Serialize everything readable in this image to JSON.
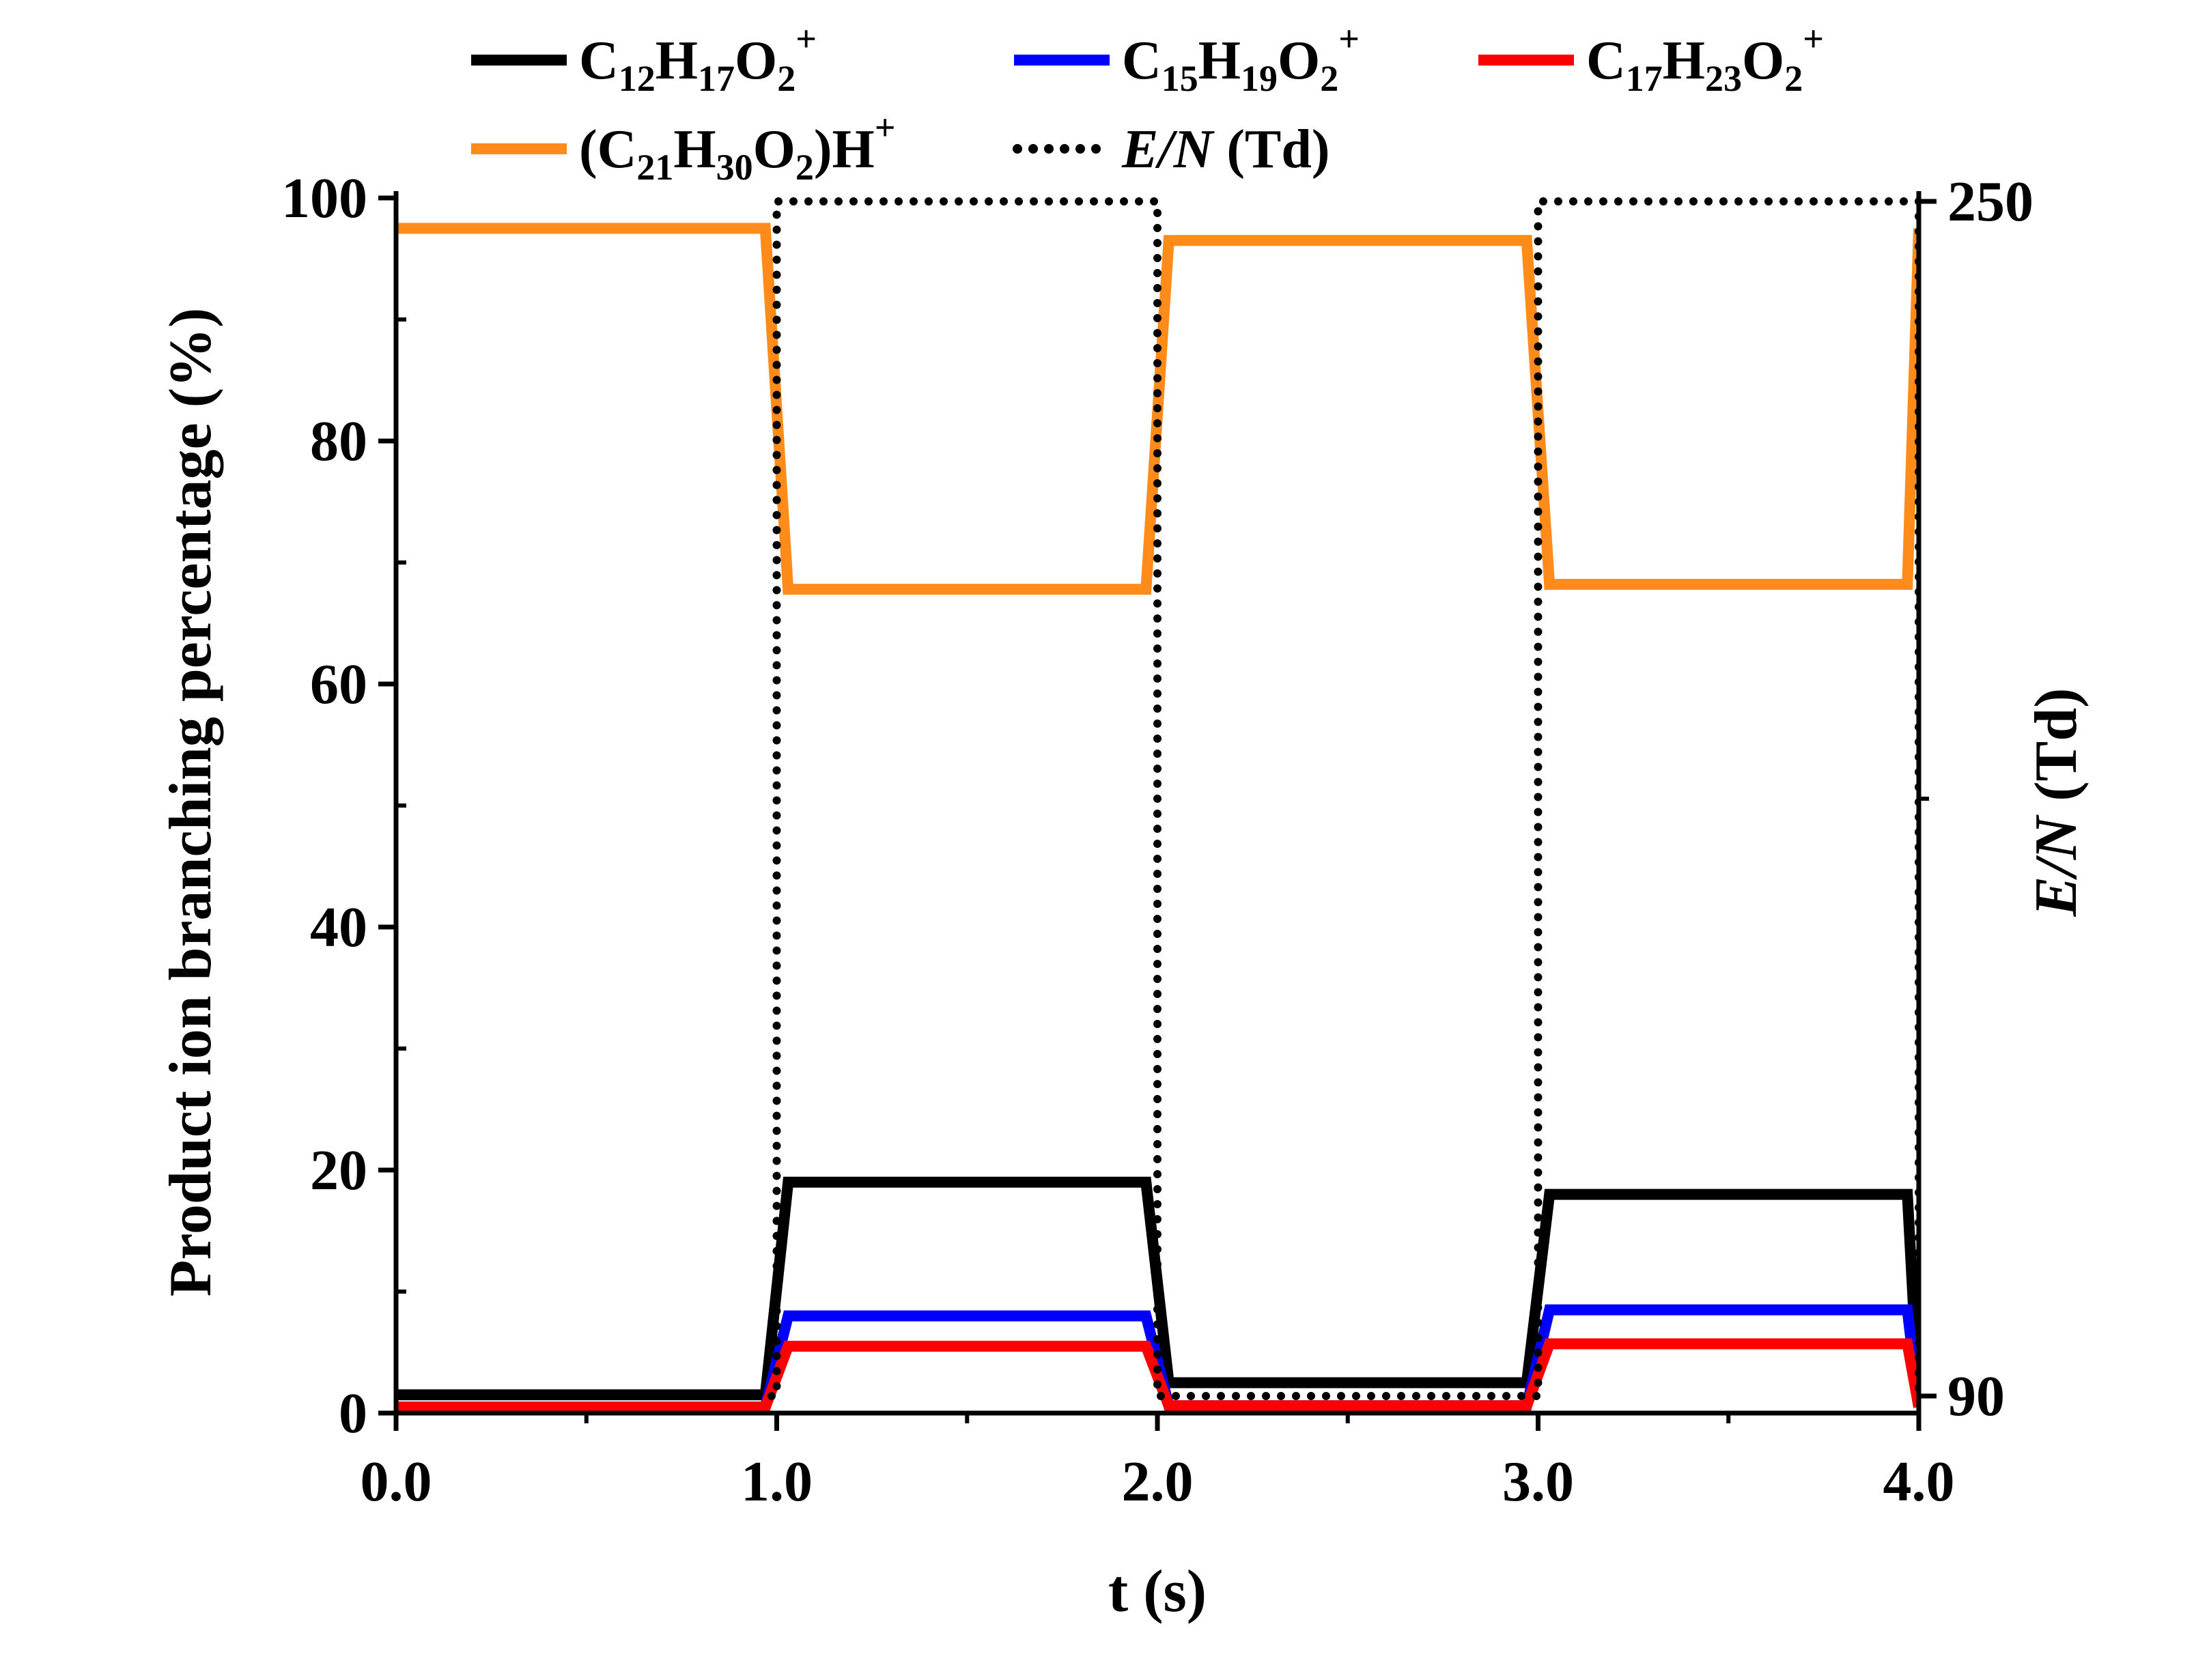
{
  "chart_data": {
    "type": "line",
    "xlabel": "t (s)",
    "ylabel": "Product ion branching percentage (%)",
    "y2label_italic": "E/N",
    "y2label_rest": " (Td)",
    "xlim": [
      0,
      4
    ],
    "ylim": [
      0,
      100
    ],
    "y2lim": [
      90,
      250
    ],
    "x_ticks": [
      "0.0",
      "1.0",
      "2.0",
      "3.0",
      "4.0"
    ],
    "x_tick_values": [
      0,
      1,
      2,
      3,
      4
    ],
    "y_ticks": [
      "0",
      "20",
      "40",
      "60",
      "80",
      "100"
    ],
    "y_tick_values": [
      0,
      20,
      40,
      60,
      80,
      100
    ],
    "y2_ticks": [
      "90",
      "250"
    ],
    "y2_tick_values": [
      90,
      250
    ],
    "legend": {
      "s1": {
        "base": "C",
        "sub1": "12",
        "mid": "H",
        "sub2": "17",
        "mid2": "O",
        "sub3": "2",
        "sup": "+"
      },
      "s2": {
        "base": "C",
        "sub1": "15",
        "mid": "H",
        "sub2": "19",
        "mid2": "O",
        "sub3": "2",
        "sup": "+"
      },
      "s3": {
        "base": "C",
        "sub1": "17",
        "mid": "H",
        "sub2": "23",
        "mid2": "O",
        "sub3": "2",
        "sup": "+"
      },
      "s4": {
        "open": "(C",
        "sub1": "21",
        "mid": "H",
        "sub2": "30",
        "mid2": "O",
        "sub3": "2",
        "close": ")H",
        "sup": "+"
      },
      "s5": {
        "italic": "E/N",
        "rest": " (Td)"
      }
    },
    "series": [
      {
        "key": "s1",
        "color": "#000000",
        "axis": "left",
        "style": "solid",
        "x": [
          0,
          0.97,
          1.03,
          1.97,
          2.03,
          2.97,
          3.03,
          3.97,
          4.0
        ],
        "y": [
          1.5,
          1.5,
          19,
          19,
          2.5,
          2.5,
          18,
          18,
          0.5
        ]
      },
      {
        "key": "s2",
        "color": "#0000ff",
        "axis": "left",
        "style": "solid",
        "x": [
          0,
          0.97,
          1.03,
          1.97,
          2.03,
          2.97,
          3.03,
          3.97,
          4.0
        ],
        "y": [
          0.5,
          0.5,
          8,
          8,
          0.6,
          0.6,
          8.5,
          8.5,
          0.5
        ]
      },
      {
        "key": "s3",
        "color": "#ff0000",
        "axis": "left",
        "style": "solid",
        "x": [
          0,
          0.97,
          1.03,
          1.97,
          2.03,
          2.97,
          3.03,
          3.97,
          4.0
        ],
        "y": [
          0.5,
          0.5,
          5.5,
          5.5,
          0.6,
          0.6,
          5.7,
          5.7,
          0.5
        ]
      },
      {
        "key": "s4",
        "color": "#ff8c1a",
        "axis": "left",
        "style": "solid",
        "x": [
          0,
          0.97,
          1.03,
          1.97,
          2.03,
          2.97,
          3.03,
          3.97,
          4.0
        ],
        "y": [
          97.5,
          97.5,
          67.8,
          67.8,
          96.5,
          96.5,
          68.2,
          68.2,
          97.5
        ]
      },
      {
        "key": "s5",
        "color": "#000000",
        "axis": "right",
        "style": "dotted",
        "x": [
          0,
          1.0,
          1.0,
          2.0,
          2.0,
          3.0,
          3.0,
          4.0,
          4.0
        ],
        "y": [
          90,
          90,
          250,
          250,
          90,
          90,
          250,
          250,
          90
        ]
      }
    ]
  }
}
